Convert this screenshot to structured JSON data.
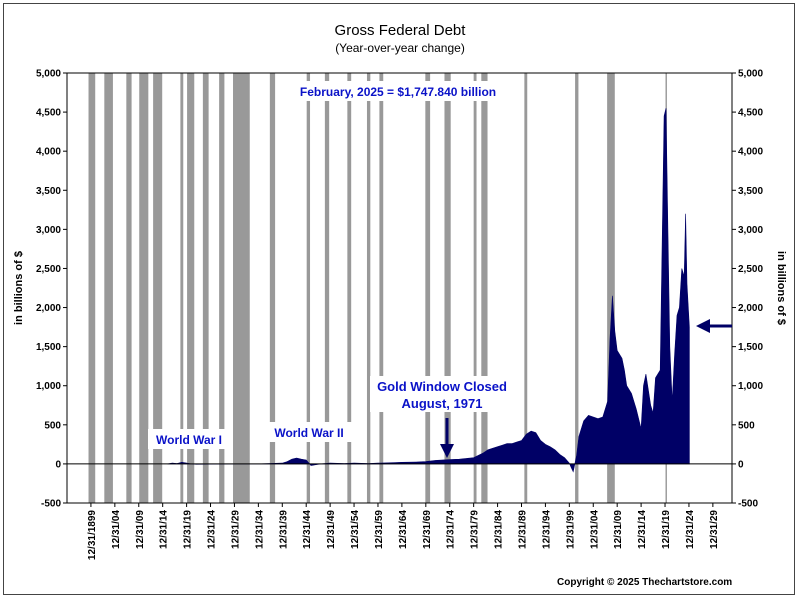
{
  "chart_data": {
    "type": "area",
    "title": "Gross Federal Debt",
    "subtitle": "(Year-over-year change)",
    "ylabel_left": "in billions of $",
    "ylabel_right": "in billions of $",
    "ylim": [
      -500,
      5000
    ],
    "yticks": [
      "-500",
      "0",
      "500",
      "1,000",
      "1,500",
      "2,000",
      "2,500",
      "3,000",
      "3,500",
      "4,000",
      "4,500",
      "5,000"
    ],
    "ytick_values": [
      -500,
      0,
      500,
      1000,
      1500,
      2000,
      2500,
      3000,
      3500,
      4000,
      4500,
      5000
    ],
    "xlim": [
      1895,
      2034
    ],
    "xticks": [
      "12/31/1899",
      "12/31/04",
      "12/31/09",
      "12/31/14",
      "12/31/19",
      "12/31/24",
      "12/31/29",
      "12/31/34",
      "12/31/39",
      "12/31/44",
      "12/31/49",
      "12/31/54",
      "12/31/59",
      "12/31/64",
      "12/31/69",
      "12/31/74",
      "12/31/79",
      "12/31/84",
      "12/31/89",
      "12/31/94",
      "12/31/99",
      "12/31/04",
      "12/31/09",
      "12/31/14",
      "12/31/19",
      "12/31/24",
      "12/31/29"
    ],
    "xtick_values": [
      1900,
      1905,
      1910,
      1915,
      1920,
      1925,
      1930,
      1935,
      1940,
      1945,
      1950,
      1955,
      1960,
      1965,
      1970,
      1975,
      1980,
      1985,
      1990,
      1995,
      2000,
      2005,
      2010,
      2015,
      2020,
      2025,
      2030
    ],
    "series": [
      {
        "color": "#000066",
        "x": [
          1916,
          1917,
          1918,
          1919,
          1920,
          1921,
          1922,
          1930,
          1935,
          1940,
          1941,
          1942,
          1943,
          1944,
          1945,
          1946,
          1947,
          1948,
          1950,
          1953,
          1955,
          1958,
          1960,
          1963,
          1965,
          1968,
          1970,
          1972,
          1975,
          1977,
          1980,
          1982,
          1983,
          1985,
          1986,
          1987,
          1988,
          1989,
          1990,
          1991,
          1992,
          1993,
          1994,
          1995,
          1996,
          1997,
          1998,
          1999,
          2000,
          2000.4,
          2000.8,
          2001.5,
          2002,
          2003,
          2004,
          2005,
          2006,
          2007,
          2008,
          2008.5,
          2009,
          2009.5,
          2010,
          2011,
          2011.5,
          2012,
          2013,
          2014,
          2015,
          2015.5,
          2016,
          2017,
          2017.5,
          2018,
          2019,
          2019.8,
          2020.2,
          2020.6,
          2021,
          2021.5,
          2022,
          2022.5,
          2023,
          2023.5,
          2024,
          2024.3,
          2024.6,
          2025.1
        ],
        "values": [
          0,
          10,
          5,
          20,
          10,
          0,
          -5,
          0,
          0,
          10,
          30,
          60,
          75,
          60,
          50,
          -20,
          -10,
          0,
          10,
          5,
          10,
          5,
          10,
          15,
          20,
          25,
          30,
          45,
          55,
          60,
          80,
          140,
          180,
          220,
          240,
          260,
          260,
          280,
          300,
          380,
          420,
          400,
          300,
          250,
          220,
          180,
          120,
          80,
          10,
          -50,
          -100,
          100,
          350,
          550,
          620,
          600,
          580,
          600,
          800,
          1600,
          2150,
          1700,
          1450,
          1350,
          1200,
          1000,
          900,
          700,
          450,
          1000,
          1150,
          750,
          650,
          1100,
          1200,
          4450,
          4550,
          3000,
          1500,
          800,
          1400,
          1900,
          2000,
          2500,
          2400,
          3200,
          2300,
          1748
        ]
      }
    ],
    "recession_bands": [
      [
        1899.5,
        1900.9
      ],
      [
        1902.8,
        1904.6
      ],
      [
        1907.4,
        1908.5
      ],
      [
        1910.1,
        1912.0
      ],
      [
        1913.0,
        1914.9
      ],
      [
        1918.7,
        1919.3
      ],
      [
        1920.1,
        1921.6
      ],
      [
        1923.4,
        1924.6
      ],
      [
        1926.8,
        1927.9
      ],
      [
        1929.7,
        1933.2
      ],
      [
        1937.4,
        1938.5
      ],
      [
        1945.1,
        1945.8
      ],
      [
        1948.9,
        1949.8
      ],
      [
        1953.6,
        1954.4
      ],
      [
        1957.7,
        1958.4
      ],
      [
        1960.3,
        1961.1
      ],
      [
        1969.9,
        1970.9
      ],
      [
        1973.9,
        1975.2
      ],
      [
        1980.0,
        1980.6
      ],
      [
        1981.6,
        1982.9
      ],
      [
        1990.6,
        1991.2
      ],
      [
        2001.2,
        2001.9
      ],
      [
        2007.9,
        2009.5
      ],
      [
        2020.1,
        2020.4
      ]
    ],
    "annotations": {
      "latest": "February, 2025 = $1,747.840 billion",
      "ww1": "World War I",
      "ww2": "World War II",
      "gold_line1": "Gold Window Closed",
      "gold_line2": "August, 1971"
    },
    "grid": false,
    "colors": {
      "area": "#000066",
      "recession": "#999999",
      "annotation": "#0a12c8"
    }
  },
  "copyright": "Copyright © 2025 Thechartstore.com"
}
